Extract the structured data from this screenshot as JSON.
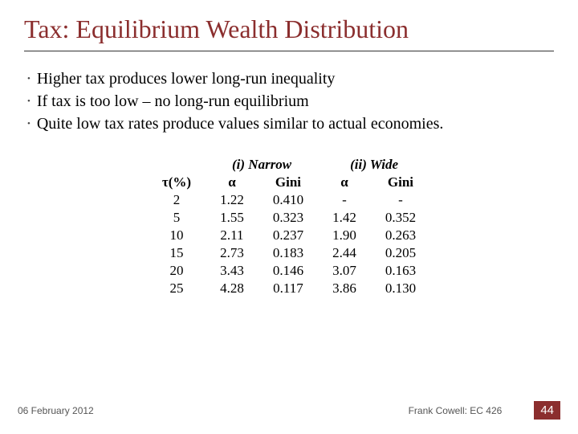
{
  "title": "Tax: Equilibrium Wealth Distribution",
  "title_color": "#8b2e2e",
  "bullets": [
    "Higher tax produces lower long-run inequality",
    "If tax is too low – no long-run equilibrium",
    "Quite low tax rates produce values similar to actual economies."
  ],
  "table": {
    "type": "table",
    "group_headers": [
      "",
      "(i) Narrow",
      "(ii) Wide"
    ],
    "col_headers": [
      "τ(%)",
      "α",
      "Gini",
      "α",
      "Gini"
    ],
    "col_header_alpha_char": "α",
    "col_header_tau_label": "(%)",
    "rows": [
      [
        "2",
        "1.22",
        "0.410",
        "-",
        "-"
      ],
      [
        "5",
        "1.55",
        "0.323",
        "1.42",
        "0.352"
      ],
      [
        "10",
        "2.11",
        "0.237",
        "1.90",
        "0.263"
      ],
      [
        "15",
        "2.73",
        "0.183",
        "2.44",
        "0.205"
      ],
      [
        "20",
        "3.43",
        "0.146",
        "3.07",
        "0.163"
      ],
      [
        "25",
        "4.28",
        "0.117",
        "3.86",
        "0.130"
      ]
    ],
    "header_fontsize": 17,
    "cell_fontsize": 17,
    "text_color": "#000000"
  },
  "footer": {
    "date": "06 February 2012",
    "author": "Frank Cowell: EC 426",
    "page": "44",
    "page_bg": "#8b2e2e",
    "page_fg": "#ffffff"
  }
}
